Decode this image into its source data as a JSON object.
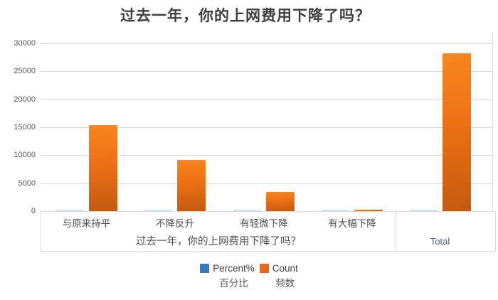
{
  "chart_data": {
    "type": "bar",
    "title": "过去一年，你的上网费用下降了吗？",
    "xlabel": "过去一年，你的上网费用下降了吗？",
    "ylabel": "",
    "categories": [
      "与原来持平",
      "不降反升",
      "有轻微下降",
      "有大幅下降",
      "Total"
    ],
    "series": [
      {
        "name": "Percent%",
        "label_zh": "百分比",
        "legend_color": "#3679be",
        "bar_color": "#cfe2f5",
        "values": [
          54.6,
          32.3,
          12.1,
          1.1,
          100.0
        ]
      },
      {
        "name": "Count",
        "label_zh": "频数",
        "legend_color": "#e8681a",
        "bar_color_top": "#f9861f",
        "bar_color_bottom": "#c45a10",
        "values": [
          15400,
          9100,
          3400,
          300,
          28200
        ]
      }
    ],
    "ylim": [
      0,
      30000
    ],
    "yticks": [
      0,
      5000,
      10000,
      15000,
      20000,
      25000,
      30000
    ],
    "grid": true,
    "legend_position": "bottom"
  },
  "colors": {
    "gridline": "#dcdcdc",
    "axis_box_border": "#d9d9d9",
    "title_text": "#3f3f3f",
    "tick_text": "#595959"
  }
}
